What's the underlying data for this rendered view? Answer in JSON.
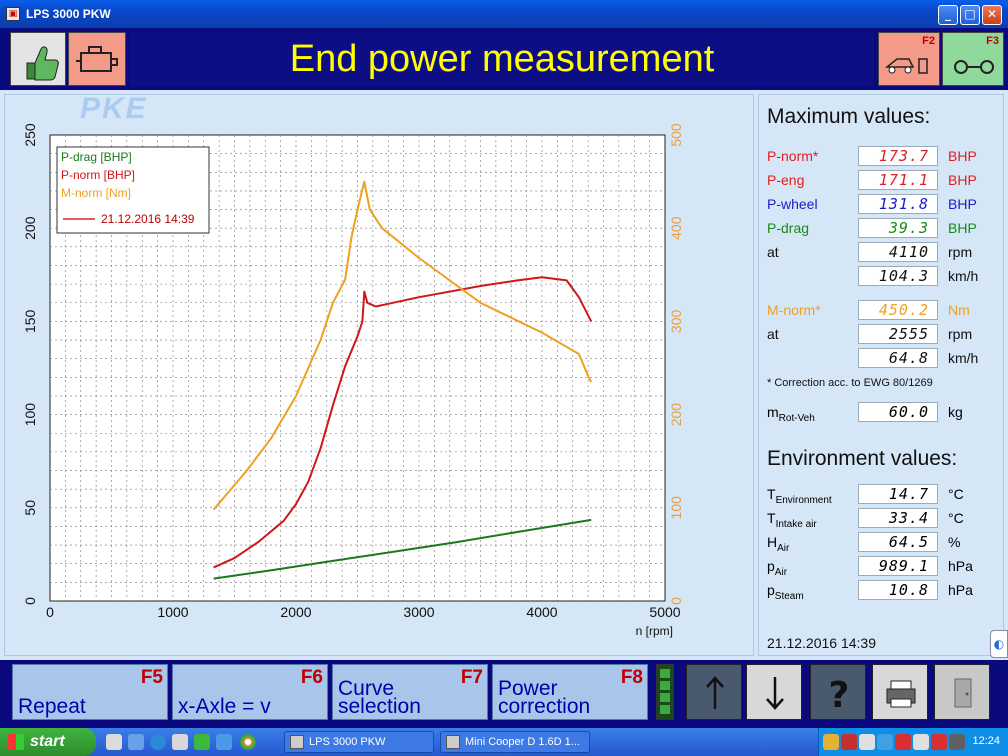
{
  "window": {
    "title": "LPS 3000 PKW"
  },
  "header": {
    "title": "End power measurement",
    "f2_label": "F2",
    "f3_label": "F3"
  },
  "watermark": "PKE",
  "chart_data": {
    "type": "line",
    "xlabel": "n [rpm]",
    "xlim": [
      0,
      5000
    ],
    "x_ticks": [
      "0",
      "1000",
      "2000",
      "3000",
      "4000",
      "5000"
    ],
    "y_left_lim": [
      0,
      250
    ],
    "y_left_ticks": [
      "0",
      "50",
      "100",
      "150",
      "200",
      "250"
    ],
    "y_right_lim": [
      0,
      500
    ],
    "y_right_ticks": [
      "0",
      "100",
      "200",
      "300",
      "400",
      "500"
    ],
    "grid": true,
    "legend_placement": "top-left",
    "legend": [
      "P-drag [BHP]",
      "P-norm [BHP]",
      "M-norm [Nm]"
    ],
    "run_label": "21.12.2016 14:39",
    "series": [
      {
        "name": "P-drag [BHP]",
        "color": "#1a7a1a",
        "axis": "left",
        "x": [
          1330,
          1800,
          2300,
          2800,
          3300,
          3800,
          4400
        ],
        "y": [
          12,
          16.5,
          21.5,
          26.5,
          31.5,
          37,
          43.5
        ]
      },
      {
        "name": "P-norm [BHP]",
        "color": "#d01818",
        "axis": "left",
        "x": [
          1330,
          1500,
          1700,
          1900,
          2000,
          2100,
          2200,
          2300,
          2400,
          2500,
          2540,
          2555,
          2580,
          2650,
          3000,
          3500,
          3800,
          4000,
          4200,
          4300,
          4400
        ],
        "y": [
          18,
          23,
          32,
          43,
          52,
          64,
          82,
          105,
          126,
          142,
          150,
          166,
          160,
          158,
          163,
          169,
          172,
          173.7,
          172,
          163,
          150
        ]
      },
      {
        "name": "M-norm [Nm]",
        "color": "#f0a020",
        "axis": "right",
        "x": [
          1330,
          1600,
          1800,
          2000,
          2100,
          2200,
          2300,
          2400,
          2450,
          2500,
          2555,
          2600,
          2700,
          3000,
          3500,
          4000,
          4300,
          4380,
          4400
        ],
        "y": [
          98,
          140,
          175,
          220,
          250,
          280,
          320,
          345,
          390,
          420,
          450,
          420,
          400,
          368,
          320,
          288,
          265,
          240,
          235
        ]
      }
    ]
  },
  "max_values": {
    "heading": "Maximum values:",
    "rows": [
      {
        "label": "P-norm*",
        "value": "173.7",
        "unit": "BHP",
        "color": "#e02020"
      },
      {
        "label": "P-eng",
        "value": "171.1",
        "unit": "BHP",
        "color": "#e02020"
      },
      {
        "label": "P-wheel",
        "value": "131.8",
        "unit": "BHP",
        "color": "#1a20c8"
      },
      {
        "label": "P-drag",
        "value": "39.3",
        "unit": "BHP",
        "color": "#1a8a1a"
      },
      {
        "label": "at",
        "value": "4110",
        "unit": "rpm",
        "color": "#111111"
      },
      {
        "label": "",
        "value": "104.3",
        "unit": "km/h",
        "color": "#111111"
      },
      {
        "label": "M-norm*",
        "value": "450.2",
        "unit": "Nm",
        "color": "#f0a020"
      },
      {
        "label": "at",
        "value": "2555",
        "unit": "rpm",
        "color": "#111111"
      },
      {
        "label": "",
        "value": "64.8",
        "unit": "km/h",
        "color": "#111111"
      }
    ],
    "footnote": "* Correction acc. to EWG 80/1269",
    "mass_label_main": "m",
    "mass_label_sub": "Rot-Veh",
    "mass_value": "60.0",
    "mass_unit": "kg"
  },
  "environment": {
    "heading": "Environment values:",
    "rows": [
      {
        "main": "T",
        "sub": "Environment",
        "value": "14.7",
        "unit": "°C"
      },
      {
        "main": "T",
        "sub": "Intake air",
        "value": "33.4",
        "unit": "°C"
      },
      {
        "main": "H",
        "sub": "Air",
        "value": "64.5",
        "unit": "%"
      },
      {
        "main": "p",
        "sub": "Air",
        "value": "989.1",
        "unit": "hPa"
      },
      {
        "main": "p",
        "sub": "Steam",
        "value": "10.8",
        "unit": "hPa"
      }
    ]
  },
  "datetime": "21.12.2016  14:39",
  "function_bar": [
    {
      "key": "F5",
      "text": "Repeat"
    },
    {
      "key": "F6",
      "text": "x-Axle = v"
    },
    {
      "key": "F7",
      "text": "Curve selection"
    },
    {
      "key": "F8",
      "text": "Power correction"
    }
  ],
  "taskbar": {
    "start": "start",
    "tasks": [
      "LPS 3000 PKW",
      "Mini Cooper D 1.6D 1..."
    ],
    "clock": "12:24"
  }
}
